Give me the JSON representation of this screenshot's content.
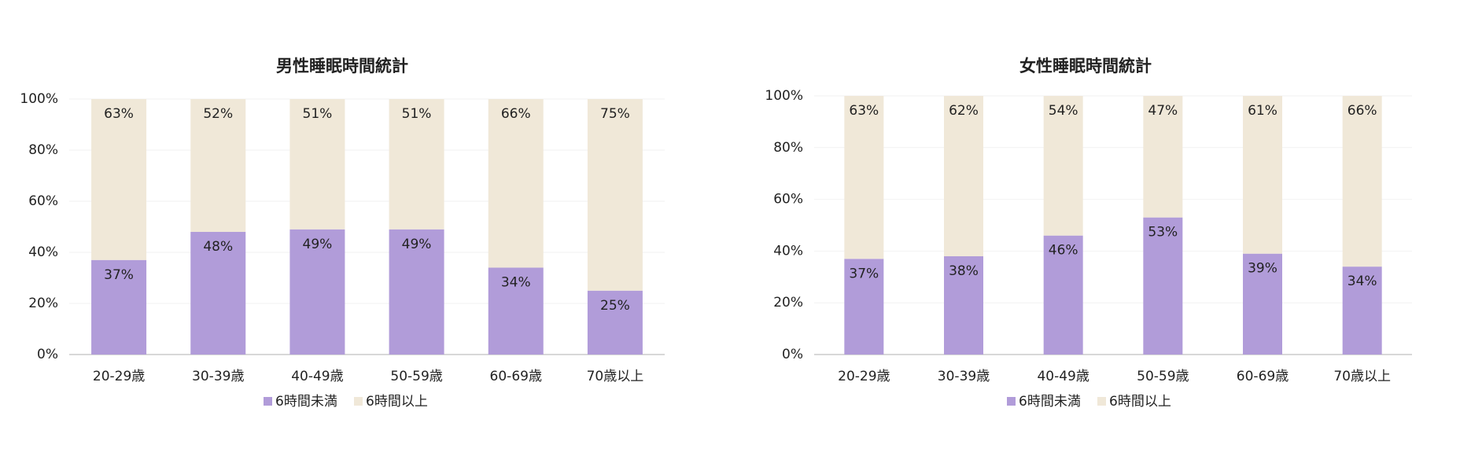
{
  "chart_data": [
    {
      "type": "bar",
      "stacked": true,
      "title": "男性睡眠時間統計",
      "categories": [
        "20-29歳",
        "30-39歳",
        "40-49歳",
        "50-59歳",
        "60-69歳",
        "70歳以上"
      ],
      "series": [
        {
          "name": "6時間未満",
          "color": "#b19cd9",
          "values": [
            37,
            48,
            49,
            49,
            34,
            25
          ],
          "value_labels": [
            "37%",
            "48%",
            "49%",
            "49%",
            "34%",
            "25%"
          ]
        },
        {
          "name": "6時間以上",
          "color": "#f0e8d8",
          "values": [
            63,
            52,
            51,
            51,
            66,
            75
          ],
          "value_labels": [
            "63%",
            "52%",
            "51%",
            "51%",
            "66%",
            "75%"
          ]
        }
      ],
      "ylim": [
        0,
        100
      ],
      "yticks": [
        {
          "value": 0,
          "label": "0%"
        },
        {
          "value": 20,
          "label": "20%"
        },
        {
          "value": 40,
          "label": "40%"
        },
        {
          "value": 60,
          "label": "60%"
        },
        {
          "value": 80,
          "label": "80%"
        },
        {
          "value": 100,
          "label": "100%"
        }
      ],
      "grid": true,
      "legend": "bottom"
    },
    {
      "type": "bar",
      "stacked": true,
      "title": "女性睡眠時間統計",
      "categories": [
        "20-29歳",
        "30-39歳",
        "40-49歳",
        "50-59歳",
        "60-69歳",
        "70歳以上"
      ],
      "series": [
        {
          "name": "6時間未満",
          "color": "#b19cd9",
          "values": [
            37,
            38,
            46,
            53,
            39,
            34
          ],
          "value_labels": [
            "37%",
            "38%",
            "46%",
            "53%",
            "39%",
            "34%"
          ]
        },
        {
          "name": "6時間以上",
          "color": "#f0e8d8",
          "values": [
            63,
            62,
            54,
            47,
            61,
            66
          ],
          "value_labels": [
            "63%",
            "62%",
            "54%",
            "47%",
            "61%",
            "66%"
          ]
        }
      ],
      "ylim": [
        0,
        100
      ],
      "yticks": [
        {
          "value": 0,
          "label": "0%"
        },
        {
          "value": 20,
          "label": "20%"
        },
        {
          "value": 40,
          "label": "40%"
        },
        {
          "value": 60,
          "label": "60%"
        },
        {
          "value": 80,
          "label": "80%"
        },
        {
          "value": 100,
          "label": "100%"
        }
      ],
      "grid": true,
      "legend": "bottom"
    }
  ]
}
